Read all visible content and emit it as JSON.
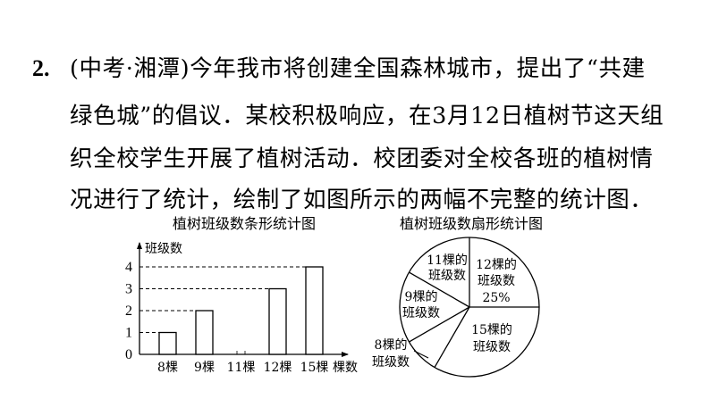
{
  "question": {
    "number": "2.",
    "lines": [
      "(中考·湘潭)今年我市将创建全国森林城市，提出了“共建",
      "绿色城”的倡议．某校积极响应，在3月12日植树节这天组",
      "织全校学生开展了植树活动．校团委对全校各班的植树情",
      "况进行了统计，绘制了如图所示的两幅不完整的统计图．"
    ]
  },
  "chart_data": [
    {
      "type": "bar",
      "title": "植树班级数条形统计图",
      "ylabel": "班级数",
      "xlabel": "棵数",
      "categories": [
        "8棵",
        "9棵",
        "11棵",
        "12棵",
        "15棵"
      ],
      "values": [
        1,
        2,
        null,
        3,
        4
      ],
      "yticks": [
        "0",
        "1",
        "2",
        "3",
        "4"
      ],
      "ylim": [
        0,
        4
      ],
      "dashed_guides": true
    },
    {
      "type": "pie",
      "title": "植树班级数扇形统计图",
      "slices": [
        {
          "label": "12棵的",
          "label2": "班级数",
          "value_label": "25%",
          "share": 0.25
        },
        {
          "label": "15棵的",
          "label2": "班级数",
          "share": 0.3333
        },
        {
          "label": "8棵的",
          "label2": "班级数",
          "share": 0.0833
        },
        {
          "label": "9棵的",
          "label2": "班级数",
          "share": 0.1667
        },
        {
          "label": "11棵的",
          "label2": "班级数",
          "share": 0.1667
        }
      ]
    }
  ]
}
